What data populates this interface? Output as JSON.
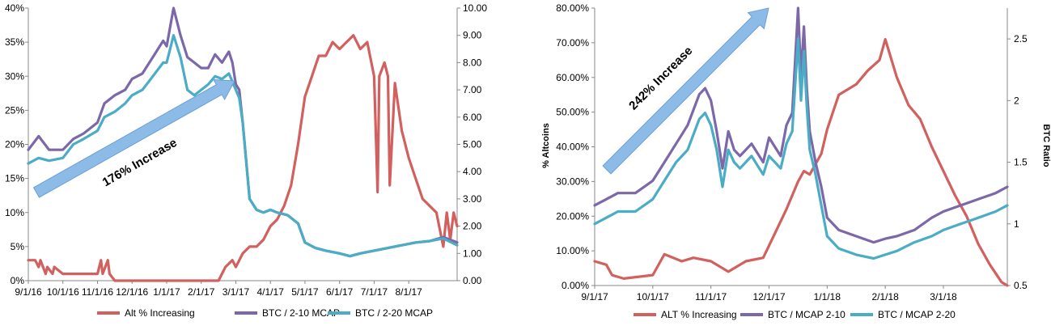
{
  "chart_data": [
    {
      "type": "line",
      "title": "",
      "xlabel": "",
      "ylabel": "",
      "y2label": "",
      "x_ticks": [
        "9/1/16",
        "10/1/16",
        "11/1/16",
        "12/1/16",
        "1/1/17",
        "2/1/17",
        "3/1/17",
        "4/1/17",
        "5/1/17",
        "6/1/17",
        "7/1/17",
        "8/1/17"
      ],
      "y_ticks": [
        "0%",
        "5%",
        "10%",
        "15%",
        "20%",
        "25%",
        "30%",
        "35%",
        "40%"
      ],
      "y2_ticks": [
        "0.00",
        "1.00",
        "2.00",
        "3.00",
        "4.00",
        "5.00",
        "6.00",
        "7.00",
        "8.00",
        "9.00",
        "10.00"
      ],
      "ylim": [
        0,
        40
      ],
      "y2lim": [
        0,
        10
      ],
      "xlim": [
        0,
        12.4
      ],
      "annotation": "176% Increase",
      "legend_position": "bottom",
      "grid": false,
      "series": [
        {
          "name": "Alt % Increasing",
          "axis": "left",
          "color": "#d1605e",
          "x": [
            0,
            0.2,
            0.3,
            0.35,
            0.5,
            0.55,
            0.7,
            0.75,
            1.0,
            1.5,
            2.0,
            2.1,
            2.15,
            2.3,
            2.35,
            2.5,
            2.6,
            3.0,
            3.5,
            4.0,
            4.5,
            5.0,
            5.3,
            5.5,
            5.7,
            5.9,
            6.0,
            6.2,
            6.4,
            6.6,
            6.8,
            7.0,
            7.2,
            7.4,
            7.6,
            7.8,
            8.0,
            8.2,
            8.4,
            8.6,
            8.8,
            9.0,
            9.2,
            9.4,
            9.6,
            9.8,
            10.0,
            10.1,
            10.15,
            10.3,
            10.4,
            10.45,
            10.6,
            10.8,
            11.0,
            11.2,
            11.4,
            11.6,
            11.8,
            12.0,
            12.1,
            12.2,
            12.3,
            12.4
          ],
          "values": [
            3,
            3,
            2,
            3,
            1,
            2,
            1,
            2,
            1,
            1,
            1,
            3,
            1,
            3,
            1,
            0,
            0,
            0,
            0,
            0,
            0,
            0,
            0,
            0,
            2,
            3,
            2,
            4,
            5,
            5,
            6,
            8,
            9,
            11,
            14,
            20,
            27,
            30,
            33,
            33,
            35,
            34,
            35,
            36,
            34,
            35,
            30,
            13,
            30,
            32,
            30,
            14,
            29,
            22,
            18,
            15,
            12,
            11,
            10,
            5,
            10,
            6,
            10,
            8
          ]
        },
        {
          "name": "BTC / 2-10 MCAP",
          "axis": "right",
          "color": "#7c68a8",
          "x": [
            0,
            0.3,
            0.6,
            1.0,
            1.3,
            1.6,
            2.0,
            2.2,
            2.5,
            2.8,
            3.0,
            3.3,
            3.6,
            3.9,
            4.0,
            4.2,
            4.4,
            4.6,
            4.8,
            5.0,
            5.2,
            5.4,
            5.6,
            5.8,
            5.9,
            6.0,
            6.1,
            6.2,
            6.4,
            6.6,
            6.8,
            7.0,
            7.2,
            7.5,
            7.8,
            8.0,
            8.3,
            8.6,
            9.0,
            9.3,
            9.6,
            10.0,
            10.4,
            10.8,
            11.2,
            11.6,
            12.0,
            12.4
          ],
          "values": [
            4.8,
            5.3,
            4.8,
            4.8,
            5.2,
            5.4,
            5.8,
            6.5,
            6.8,
            7.0,
            7.4,
            7.6,
            8.2,
            8.8,
            8.6,
            10.0,
            9.0,
            8.2,
            8.0,
            7.8,
            7.8,
            8.3,
            8.0,
            8.4,
            8.0,
            7.2,
            7.0,
            5.8,
            3.0,
            2.6,
            2.5,
            2.6,
            2.5,
            2.4,
            2.1,
            1.4,
            1.2,
            1.1,
            1.0,
            0.9,
            1.0,
            1.1,
            1.2,
            1.3,
            1.4,
            1.45,
            1.6,
            1.4
          ]
        },
        {
          "name": "BTC / 2-20 MCAP",
          "axis": "right",
          "color": "#4bacc6",
          "x": [
            0,
            0.3,
            0.6,
            1.0,
            1.3,
            1.6,
            2.0,
            2.2,
            2.5,
            2.8,
            3.0,
            3.3,
            3.6,
            3.9,
            4.0,
            4.2,
            4.4,
            4.6,
            4.8,
            5.0,
            5.2,
            5.4,
            5.6,
            5.8,
            5.9,
            6.0,
            6.1,
            6.2,
            6.4,
            6.6,
            6.8,
            7.0,
            7.2,
            7.5,
            7.8,
            8.0,
            8.3,
            8.6,
            9.0,
            9.3,
            9.6,
            10.0,
            10.4,
            10.8,
            11.2,
            11.6,
            12.0,
            12.4
          ],
          "values": [
            4.3,
            4.5,
            4.4,
            4.5,
            5.0,
            5.2,
            5.5,
            6.0,
            6.2,
            6.5,
            6.8,
            7.0,
            7.5,
            8.0,
            8.0,
            9.0,
            8.2,
            7.0,
            6.8,
            7.0,
            7.2,
            7.5,
            7.4,
            7.6,
            7.3,
            7.0,
            6.7,
            5.8,
            3.0,
            2.6,
            2.5,
            2.6,
            2.5,
            2.4,
            2.1,
            1.4,
            1.2,
            1.1,
            1.0,
            0.9,
            1.0,
            1.1,
            1.2,
            1.3,
            1.4,
            1.45,
            1.55,
            1.3
          ]
        }
      ]
    },
    {
      "type": "line",
      "title": "",
      "xlabel": "",
      "ylabel": "% Altcoins",
      "y2label": "BTC Ratio",
      "x_ticks": [
        "9/1/17",
        "10/1/17",
        "11/1/17",
        "12/1/17",
        "1/1/18",
        "2/1/18",
        "3/1/18"
      ],
      "y_ticks": [
        "0.00%",
        "10.00%",
        "20.00%",
        "30.00%",
        "40.00%",
        "50.00%",
        "60.00%",
        "70.00%",
        "80.00%"
      ],
      "y2_ticks": [
        "0.5",
        "1",
        "1.5",
        "2",
        "2.5"
      ],
      "ylim": [
        0,
        80
      ],
      "y2lim": [
        0.5,
        2.75
      ],
      "xlim": [
        0,
        7.1
      ],
      "annotation": "242% Increase",
      "legend_position": "bottom",
      "grid": false,
      "series": [
        {
          "name": "ALT % Increasing",
          "axis": "left",
          "color": "#d1605e",
          "x": [
            0,
            0.2,
            0.3,
            0.5,
            1.0,
            1.2,
            1.5,
            1.7,
            2.0,
            2.3,
            2.6,
            2.9,
            3.1,
            3.3,
            3.5,
            3.6,
            3.7,
            3.8,
            3.9,
            4.0,
            4.2,
            4.5,
            4.7,
            4.9,
            5.0,
            5.2,
            5.4,
            5.6,
            5.8,
            6.0,
            6.2,
            6.4,
            6.6,
            6.8,
            7.0,
            7.1
          ],
          "values": [
            7,
            6,
            3,
            2,
            3,
            9,
            7,
            8,
            7,
            4,
            7,
            8,
            15,
            22,
            30,
            33,
            32,
            35,
            38,
            45,
            55,
            58,
            62,
            65,
            71,
            60,
            52,
            48,
            40,
            33,
            26,
            20,
            12,
            6,
            1,
            0
          ]
        },
        {
          "name": "BTC / MCAP 2-10",
          "axis": "right",
          "color": "#7c68a8",
          "x": [
            0,
            0.2,
            0.4,
            0.7,
            1.0,
            1.2,
            1.4,
            1.6,
            1.8,
            1.9,
            2.0,
            2.1,
            2.2,
            2.3,
            2.4,
            2.5,
            2.7,
            2.9,
            3.0,
            3.2,
            3.3,
            3.4,
            3.5,
            3.55,
            3.6,
            3.65,
            3.7,
            3.8,
            3.9,
            4.0,
            4.2,
            4.5,
            4.8,
            5.0,
            5.2,
            5.5,
            5.8,
            6.0,
            6.3,
            6.6,
            6.9,
            7.1
          ],
          "values": [
            1.15,
            1.2,
            1.25,
            1.25,
            1.35,
            1.5,
            1.65,
            1.8,
            2.05,
            2.1,
            2.0,
            1.75,
            1.45,
            1.75,
            1.6,
            1.55,
            1.65,
            1.5,
            1.7,
            1.55,
            1.8,
            1.9,
            2.75,
            2.2,
            2.6,
            2.1,
            1.75,
            1.5,
            1.3,
            1.05,
            0.95,
            0.9,
            0.85,
            0.88,
            0.9,
            0.95,
            1.05,
            1.1,
            1.15,
            1.2,
            1.25,
            1.3
          ]
        },
        {
          "name": "BTC / MCAP 2-20",
          "axis": "right",
          "color": "#4bacc6",
          "x": [
            0,
            0.2,
            0.4,
            0.7,
            1.0,
            1.2,
            1.4,
            1.6,
            1.8,
            1.9,
            2.0,
            2.1,
            2.2,
            2.3,
            2.4,
            2.5,
            2.7,
            2.9,
            3.0,
            3.2,
            3.3,
            3.4,
            3.5,
            3.55,
            3.6,
            3.65,
            3.7,
            3.8,
            3.9,
            4.0,
            4.2,
            4.5,
            4.8,
            5.0,
            5.2,
            5.5,
            5.8,
            6.0,
            6.3,
            6.6,
            6.9,
            7.1
          ],
          "values": [
            1.0,
            1.05,
            1.1,
            1.1,
            1.2,
            1.35,
            1.5,
            1.6,
            1.85,
            1.9,
            1.8,
            1.6,
            1.3,
            1.6,
            1.5,
            1.45,
            1.55,
            1.4,
            1.55,
            1.45,
            1.65,
            1.75,
            2.5,
            2.0,
            2.4,
            1.95,
            1.6,
            1.4,
            1.15,
            0.9,
            0.8,
            0.75,
            0.72,
            0.75,
            0.78,
            0.85,
            0.9,
            0.95,
            1.0,
            1.05,
            1.1,
            1.15
          ]
        }
      ]
    }
  ]
}
